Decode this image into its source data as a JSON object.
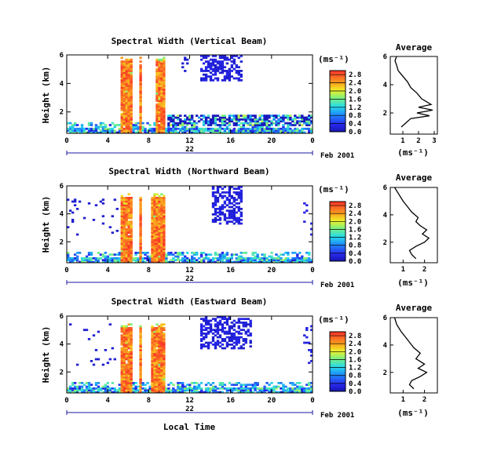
{
  "figure": {
    "xlabel": "Local Time",
    "date_label": "Feb 2001",
    "day_label": "22",
    "unit_label": "(ms⁻¹)",
    "avg_title": "Average",
    "avg_xlabel": "(ms⁻¹)"
  },
  "chart_data": [
    {
      "type": "heatmap",
      "title": "Spectral Width (Vertical Beam)",
      "xlabel": "Local Time",
      "ylabel": "Height (km)",
      "x_ticks": [
        "0",
        "4",
        "8",
        "12",
        "16",
        "20",
        "0"
      ],
      "y_ticks": [
        "2",
        "4",
        "6"
      ],
      "xlim": [
        0,
        24
      ],
      "ylim": [
        0.5,
        6
      ],
      "colorbar_label": "(ms⁻¹)",
      "colorbar_ticks": [
        "0.0",
        "0.4",
        "0.8",
        "1.2",
        "1.6",
        "2.0",
        "2.4",
        "2.8"
      ],
      "colorbar_range": [
        0,
        3.0
      ],
      "colors": {
        "low": "#1010e0",
        "high": "#ff3030"
      },
      "rain_bands_hours": [
        [
          5.2,
          6.5
        ],
        [
          7.0,
          7.4
        ],
        [
          8.6,
          9.6
        ]
      ],
      "cloud_region": {
        "hours": [
          13.0,
          17.2
        ],
        "km": [
          4.2,
          6.0
        ],
        "value": 0.15
      }
    },
    {
      "type": "line",
      "title": "Average",
      "xlabel": "(ms⁻¹)",
      "x_ticks": [
        "1",
        "2",
        "3"
      ],
      "y_ticks": [
        "2",
        "4",
        "6"
      ],
      "xlim": [
        0.2,
        3.2
      ],
      "ylim": [
        0.5,
        6
      ],
      "x": [
        0.9,
        1.2,
        1.5,
        2.7,
        1.9,
        2.9,
        2.0,
        2.8,
        2.2,
        1.9,
        1.5,
        1.3,
        1.0,
        0.7,
        0.6,
        0.5,
        0.6
      ],
      "y": [
        1.0,
        1.3,
        1.6,
        1.8,
        2.0,
        2.2,
        2.4,
        2.6,
        3.0,
        3.4,
        3.8,
        4.2,
        4.6,
        5.0,
        5.4,
        5.7,
        6.0
      ]
    },
    {
      "type": "heatmap",
      "title": "Spectral Width (Northward Beam)",
      "xlabel": "Local Time",
      "ylabel": "Height (km)",
      "x_ticks": [
        "0",
        "4",
        "8",
        "12",
        "16",
        "20",
        "0"
      ],
      "y_ticks": [
        "2",
        "4",
        "6"
      ],
      "xlim": [
        0,
        24
      ],
      "ylim": [
        0.5,
        6
      ],
      "colorbar_label": "(ms⁻¹)",
      "colorbar_ticks": [
        "0.0",
        "0.4",
        "0.8",
        "1.2",
        "1.6",
        "2.0",
        "2.4",
        "2.8"
      ],
      "colorbar_range": [
        0,
        3.0
      ],
      "colors": {
        "low": "#1010e0",
        "high": "#ff3030"
      },
      "rain_bands_hours": [
        [
          5.2,
          6.5
        ],
        [
          7.0,
          7.4
        ],
        [
          8.3,
          9.6
        ]
      ],
      "cloud_region": {
        "hours": [
          14.2,
          17.2
        ],
        "km": [
          3.2,
          6.0
        ],
        "value": 0.15
      }
    },
    {
      "type": "line",
      "title": "Average",
      "xlabel": "(ms⁻¹)",
      "x_ticks": [
        "1",
        "2"
      ],
      "y_ticks": [
        "2",
        "4",
        "6"
      ],
      "xlim": [
        0.4,
        2.6
      ],
      "ylim": [
        0.5,
        6
      ],
      "x": [
        1.6,
        1.4,
        1.3,
        1.6,
        2.0,
        2.2,
        1.9,
        2.1,
        1.8,
        1.6,
        1.7,
        1.4,
        1.2,
        1.0,
        0.8,
        0.6
      ],
      "y": [
        0.8,
        1.1,
        1.4,
        1.7,
        2.0,
        2.3,
        2.6,
        2.9,
        3.2,
        3.5,
        3.8,
        4.2,
        4.6,
        5.0,
        5.5,
        6.0
      ]
    },
    {
      "type": "heatmap",
      "title": "Spectral Width (Eastward Beam)",
      "xlabel": "Local Time",
      "ylabel": "Height (km)",
      "x_ticks": [
        "0",
        "4",
        "8",
        "12",
        "16",
        "20",
        "0"
      ],
      "y_ticks": [
        "2",
        "4",
        "6"
      ],
      "xlim": [
        0,
        24
      ],
      "ylim": [
        0.5,
        6
      ],
      "colorbar_label": "(ms⁻¹)",
      "colorbar_ticks": [
        "0.0",
        "0.4",
        "0.8",
        "1.2",
        "1.6",
        "2.0",
        "2.4",
        "2.8"
      ],
      "colorbar_range": [
        0,
        3.0
      ],
      "colors": {
        "low": "#1010e0",
        "high": "#ff3030"
      },
      "rain_bands_hours": [
        [
          5.2,
          6.5
        ],
        [
          7.0,
          7.4
        ],
        [
          8.3,
          9.6
        ]
      ],
      "cloud_region": {
        "hours": [
          13.0,
          18.0
        ],
        "km": [
          3.6,
          6.0
        ],
        "value": 0.15
      }
    },
    {
      "type": "line",
      "title": "Average",
      "xlabel": "(ms⁻¹)",
      "x_ticks": [
        "1",
        "2"
      ],
      "y_ticks": [
        "2",
        "4",
        "6"
      ],
      "xlim": [
        0.4,
        2.6
      ],
      "ylim": [
        0.5,
        6
      ],
      "x": [
        1.5,
        1.3,
        1.4,
        1.8,
        2.1,
        1.7,
        2.0,
        1.6,
        1.8,
        1.5,
        1.3,
        1.1,
        0.9,
        0.7,
        0.6
      ],
      "y": [
        0.8,
        1.1,
        1.4,
        1.7,
        2.0,
        2.3,
        2.6,
        3.0,
        3.4,
        3.8,
        4.2,
        4.6,
        5.0,
        5.5,
        6.0
      ]
    }
  ]
}
